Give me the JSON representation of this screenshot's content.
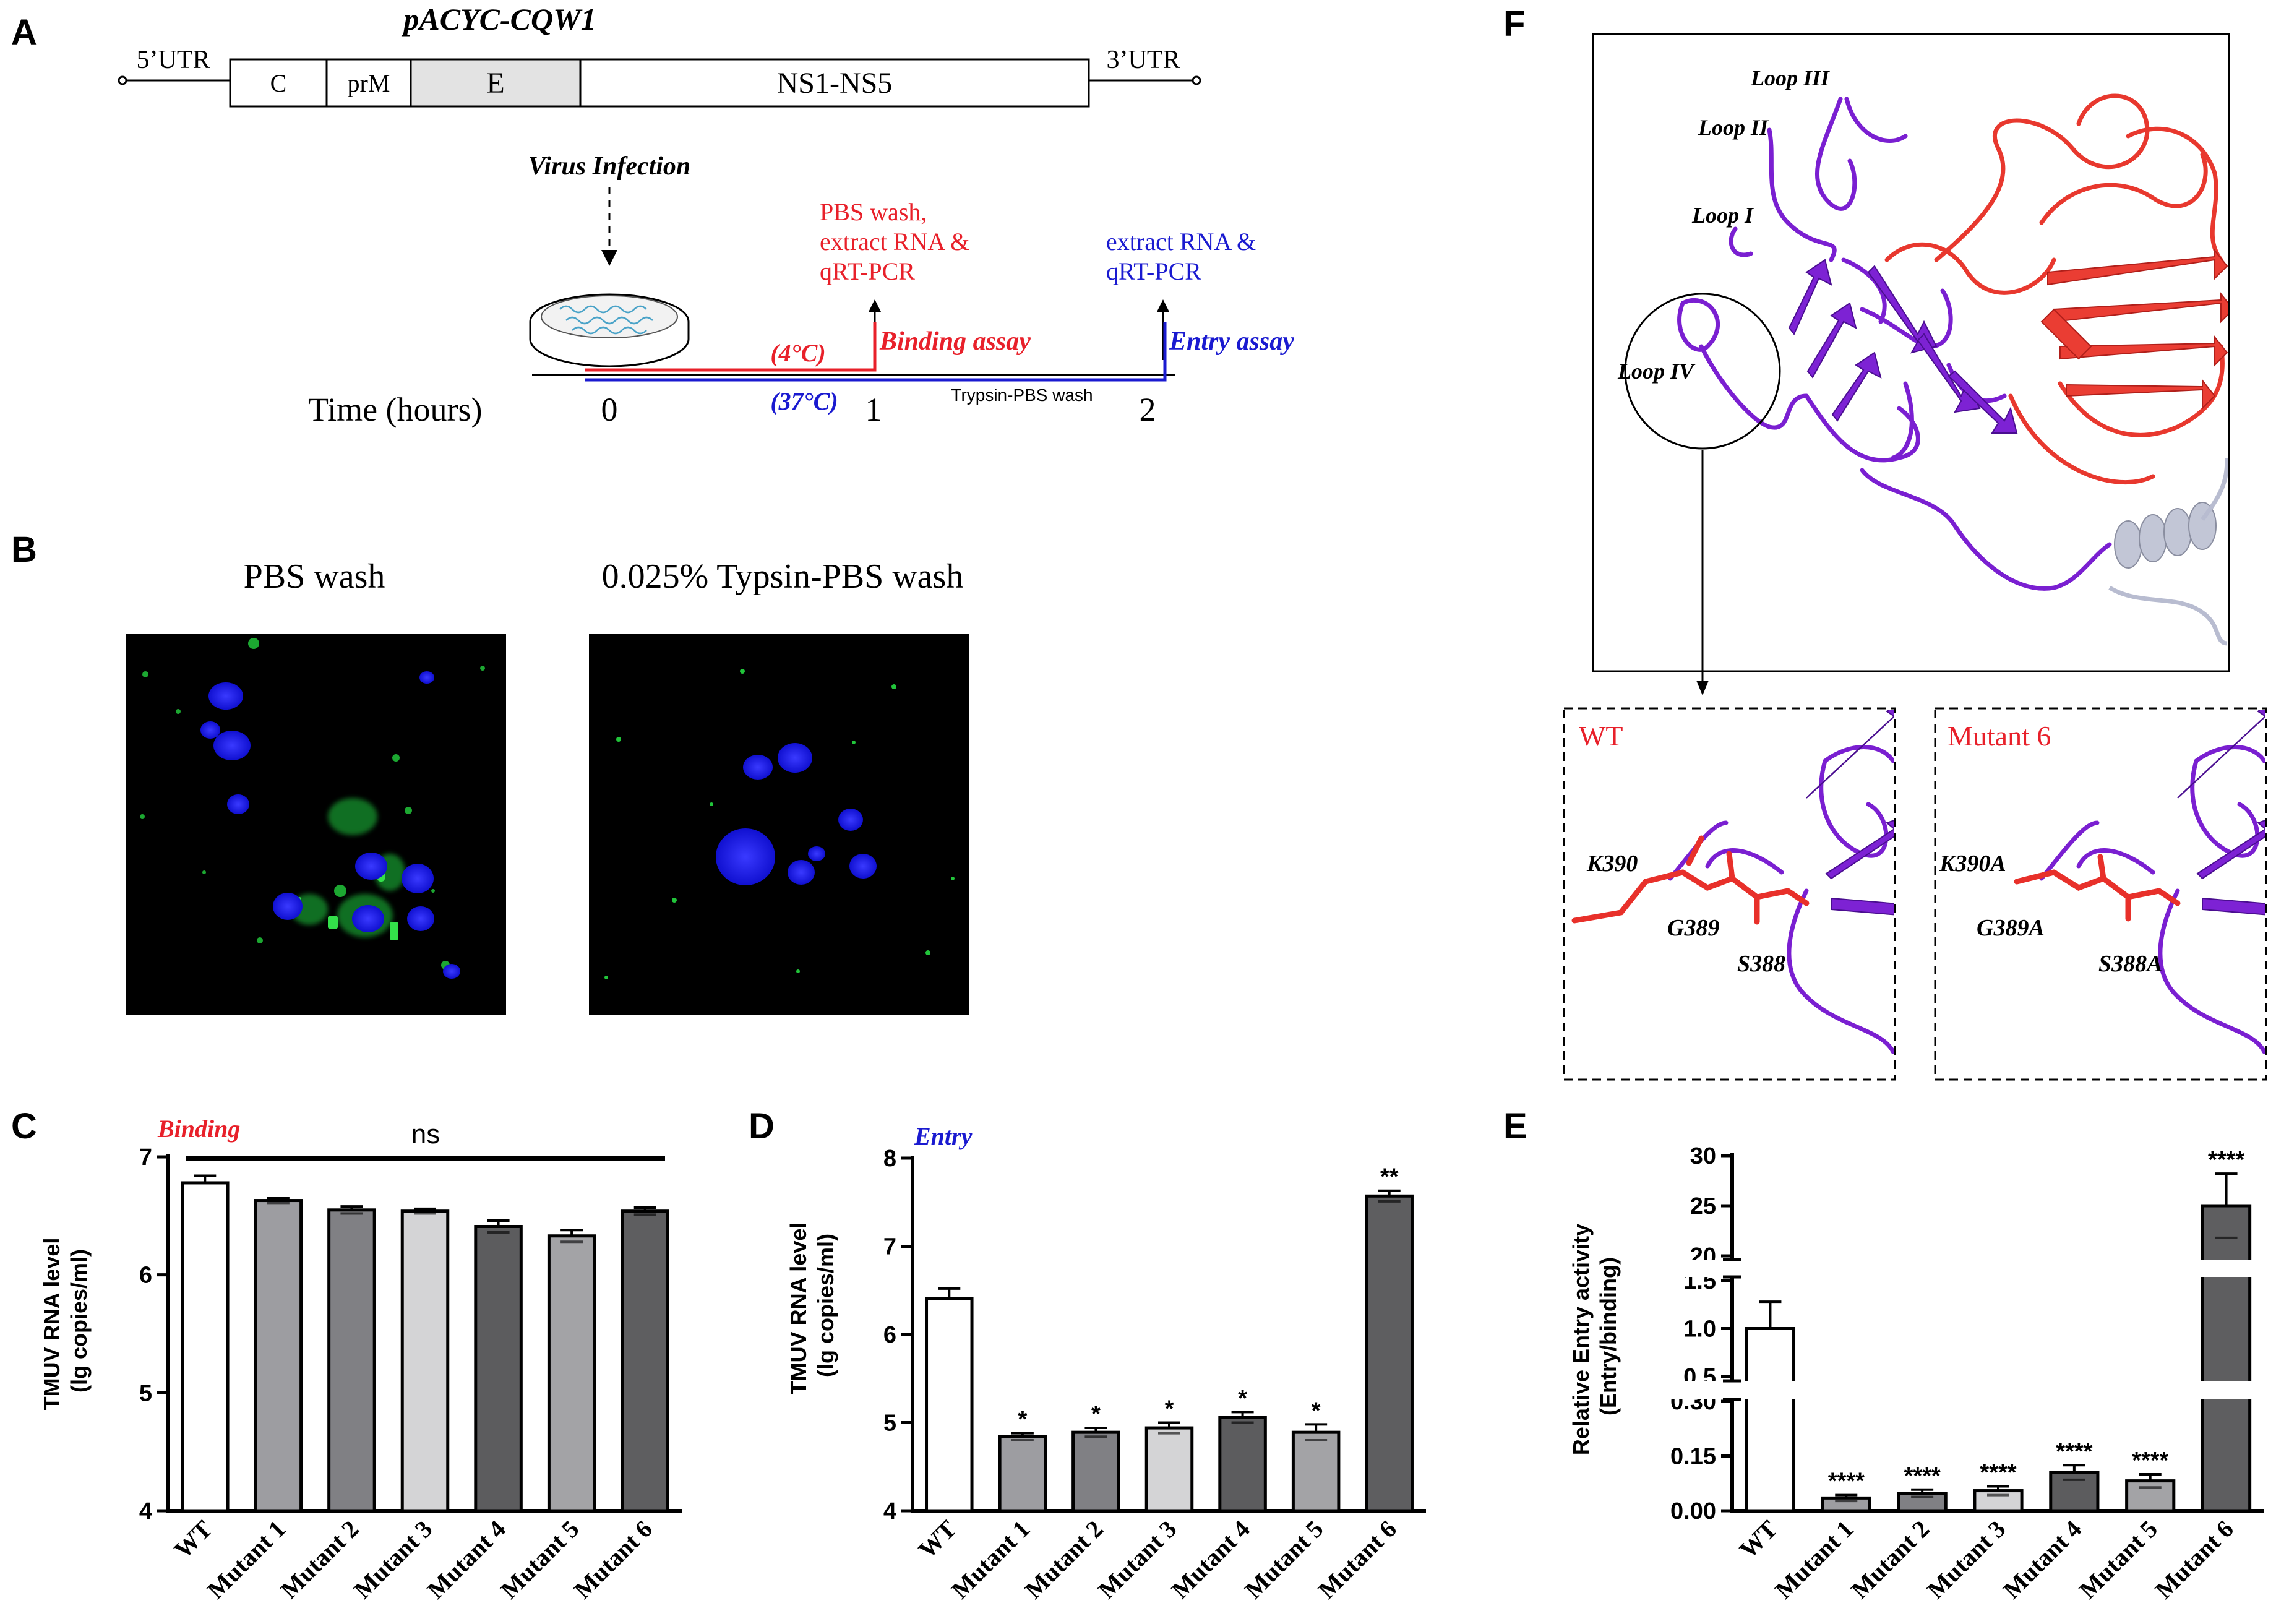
{
  "panel_letters": {
    "A": "A",
    "B": "B",
    "C": "C",
    "D": "D",
    "E": "E",
    "F": "F"
  },
  "panel_a": {
    "plasmid": "pACYC-CQW1",
    "genome": {
      "utr5": "5’UTR",
      "c": "C",
      "prm": "prM",
      "e": "E",
      "ns": "NS1-NS5",
      "utr3": "3’UTR"
    },
    "infection": "Virus Infection",
    "pbs_step": [
      "PBS wash,",
      "extract RNA &",
      "qRT-PCR"
    ],
    "entry_step": [
      "extract RNA &",
      "qRT-PCR"
    ],
    "binding_label": "Binding assay",
    "entry_label": "Entry assay",
    "temp_binding": "(4°C)",
    "temp_entry": "(37°C)",
    "time_axis": "Time (hours)",
    "t0": "0",
    "t1": "1",
    "t2": "2",
    "trypsin_wash": "Trypsin-PBS wash",
    "colors": {
      "binding": "#e8202a",
      "entry": "#1a1ad0"
    }
  },
  "panel_b": {
    "left_title": "PBS wash",
    "right_title": "0.025% Typsin-PBS wash"
  },
  "panel_f": {
    "loops": [
      "Loop III",
      "Loop II",
      "Loop I",
      "Loop IV"
    ],
    "wt_title": "WT",
    "mut_title": "Mutant 6",
    "wt_residues": [
      "K390",
      "G389",
      "S388"
    ],
    "mut_residues": [
      "K390A",
      "G389A",
      "S388A"
    ],
    "colors": {
      "domain_iii": "#7a1fd1",
      "domain_i": "#e8382e",
      "helix": "#b8bcd0"
    }
  },
  "chart_data": [
    {
      "id": "C",
      "type": "bar",
      "tag": "Binding",
      "ylabel": [
        "TMUV RNA level",
        "(lg copies/ml)"
      ],
      "categories": [
        "WT",
        "Mutant 1",
        "Mutant 2",
        "Mutant 3",
        "Mutant 4",
        "Mutant 5",
        "Mutant 6"
      ],
      "values": [
        6.78,
        6.63,
        6.55,
        6.54,
        6.41,
        6.33,
        6.54
      ],
      "errors": [
        0.06,
        0.02,
        0.03,
        0.02,
        0.05,
        0.05,
        0.03
      ],
      "significance": [
        "",
        "",
        "",
        "",
        "",
        "",
        ""
      ],
      "bracket_label": "ns",
      "ylim": [
        4,
        7
      ],
      "yticks": [
        "4",
        "5",
        "6",
        "7"
      ],
      "colors": [
        "#ffffff",
        "#9d9da1",
        "#808084",
        "#d4d4d6",
        "#5c5c5e",
        "#a3a3a6",
        "#5e5e60"
      ]
    },
    {
      "id": "D",
      "type": "bar",
      "tag": "Entry",
      "ylabel": [
        "TMUV RNA level",
        "(lg copies/ml)"
      ],
      "categories": [
        "WT",
        "Mutant 1",
        "Mutant 2",
        "Mutant 3",
        "Mutant 4",
        "Mutant 5",
        "Mutant 6"
      ],
      "values": [
        6.41,
        4.84,
        4.89,
        4.94,
        5.06,
        4.89,
        7.57
      ],
      "errors": [
        0.11,
        0.04,
        0.05,
        0.06,
        0.06,
        0.09,
        0.06
      ],
      "significance": [
        "",
        "*",
        "*",
        "*",
        "*",
        "*",
        "**"
      ],
      "ylim": [
        4,
        8
      ],
      "yticks": [
        "4",
        "5",
        "6",
        "7",
        "8"
      ],
      "colors": [
        "#ffffff",
        "#9d9da1",
        "#808084",
        "#d4d4d6",
        "#5c5c5e",
        "#a3a3a6",
        "#5e5e60"
      ]
    },
    {
      "id": "E",
      "type": "bar",
      "ylabel": [
        "Relative Entry activity",
        "(Entry/binding)"
      ],
      "categories": [
        "WT",
        "Mutant 1",
        "Mutant 2",
        "Mutant 3",
        "Mutant 4",
        "Mutant 5",
        "Mutant 6"
      ],
      "values": [
        1.0,
        0.035,
        0.048,
        0.055,
        0.105,
        0.082,
        25.0
      ],
      "errors": [
        0.28,
        0.008,
        0.01,
        0.012,
        0.02,
        0.018,
        3.2
      ],
      "significance": [
        "",
        "****",
        "****",
        "****",
        "****",
        "****",
        "****"
      ],
      "axis_breaks": [
        {
          "range": [
            0,
            0.3
          ],
          "ticks": [
            "0.00",
            "0.15",
            "0.30"
          ]
        },
        {
          "range": [
            0.5,
            1.5
          ],
          "ticks": [
            "0.5",
            "1.0",
            "1.5"
          ]
        },
        {
          "range": [
            20,
            30
          ],
          "ticks": [
            "20",
            "25",
            "30"
          ]
        }
      ],
      "colors": [
        "#ffffff",
        "#9d9da1",
        "#808084",
        "#d4d4d6",
        "#5c5c5e",
        "#a3a3a6",
        "#5e5e60"
      ]
    }
  ]
}
